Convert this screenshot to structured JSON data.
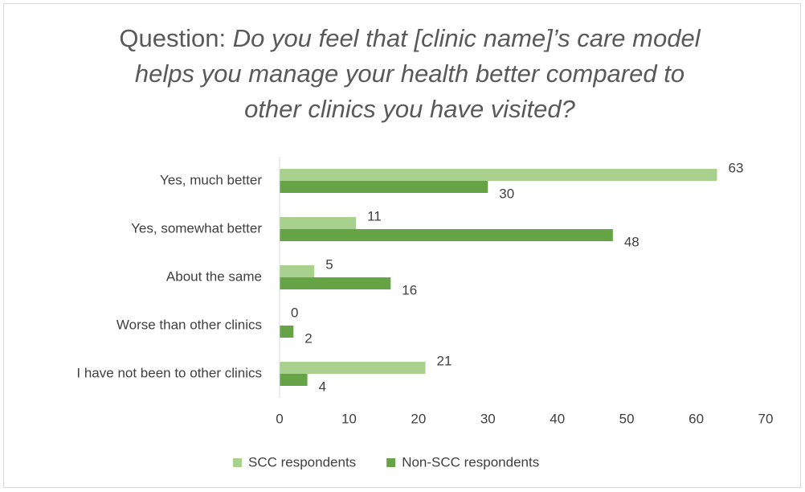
{
  "chart_data": {
    "type": "bar",
    "orientation": "horizontal",
    "title": {
      "prefix": "Question:",
      "question": "Do you feel that [clinic name]’s care model helps you manage your health better compared to other clinics you have visited?"
    },
    "categories": [
      "Yes, much better",
      "Yes, somewhat better",
      "About the same",
      "Worse than other clinics",
      "I have not been to other clinics"
    ],
    "series": [
      {
        "name": "SCC respondents",
        "color": "#a9d18e",
        "values": [
          63,
          11,
          5,
          0,
          21
        ]
      },
      {
        "name": "Non-SCC respondents",
        "color": "#64a444",
        "values": [
          30,
          48,
          16,
          2,
          4
        ]
      }
    ],
    "xlim": [
      0,
      70
    ],
    "xticks": [
      0,
      10,
      20,
      30,
      40,
      50,
      60,
      70
    ],
    "grid": false,
    "legend": "bottom"
  }
}
